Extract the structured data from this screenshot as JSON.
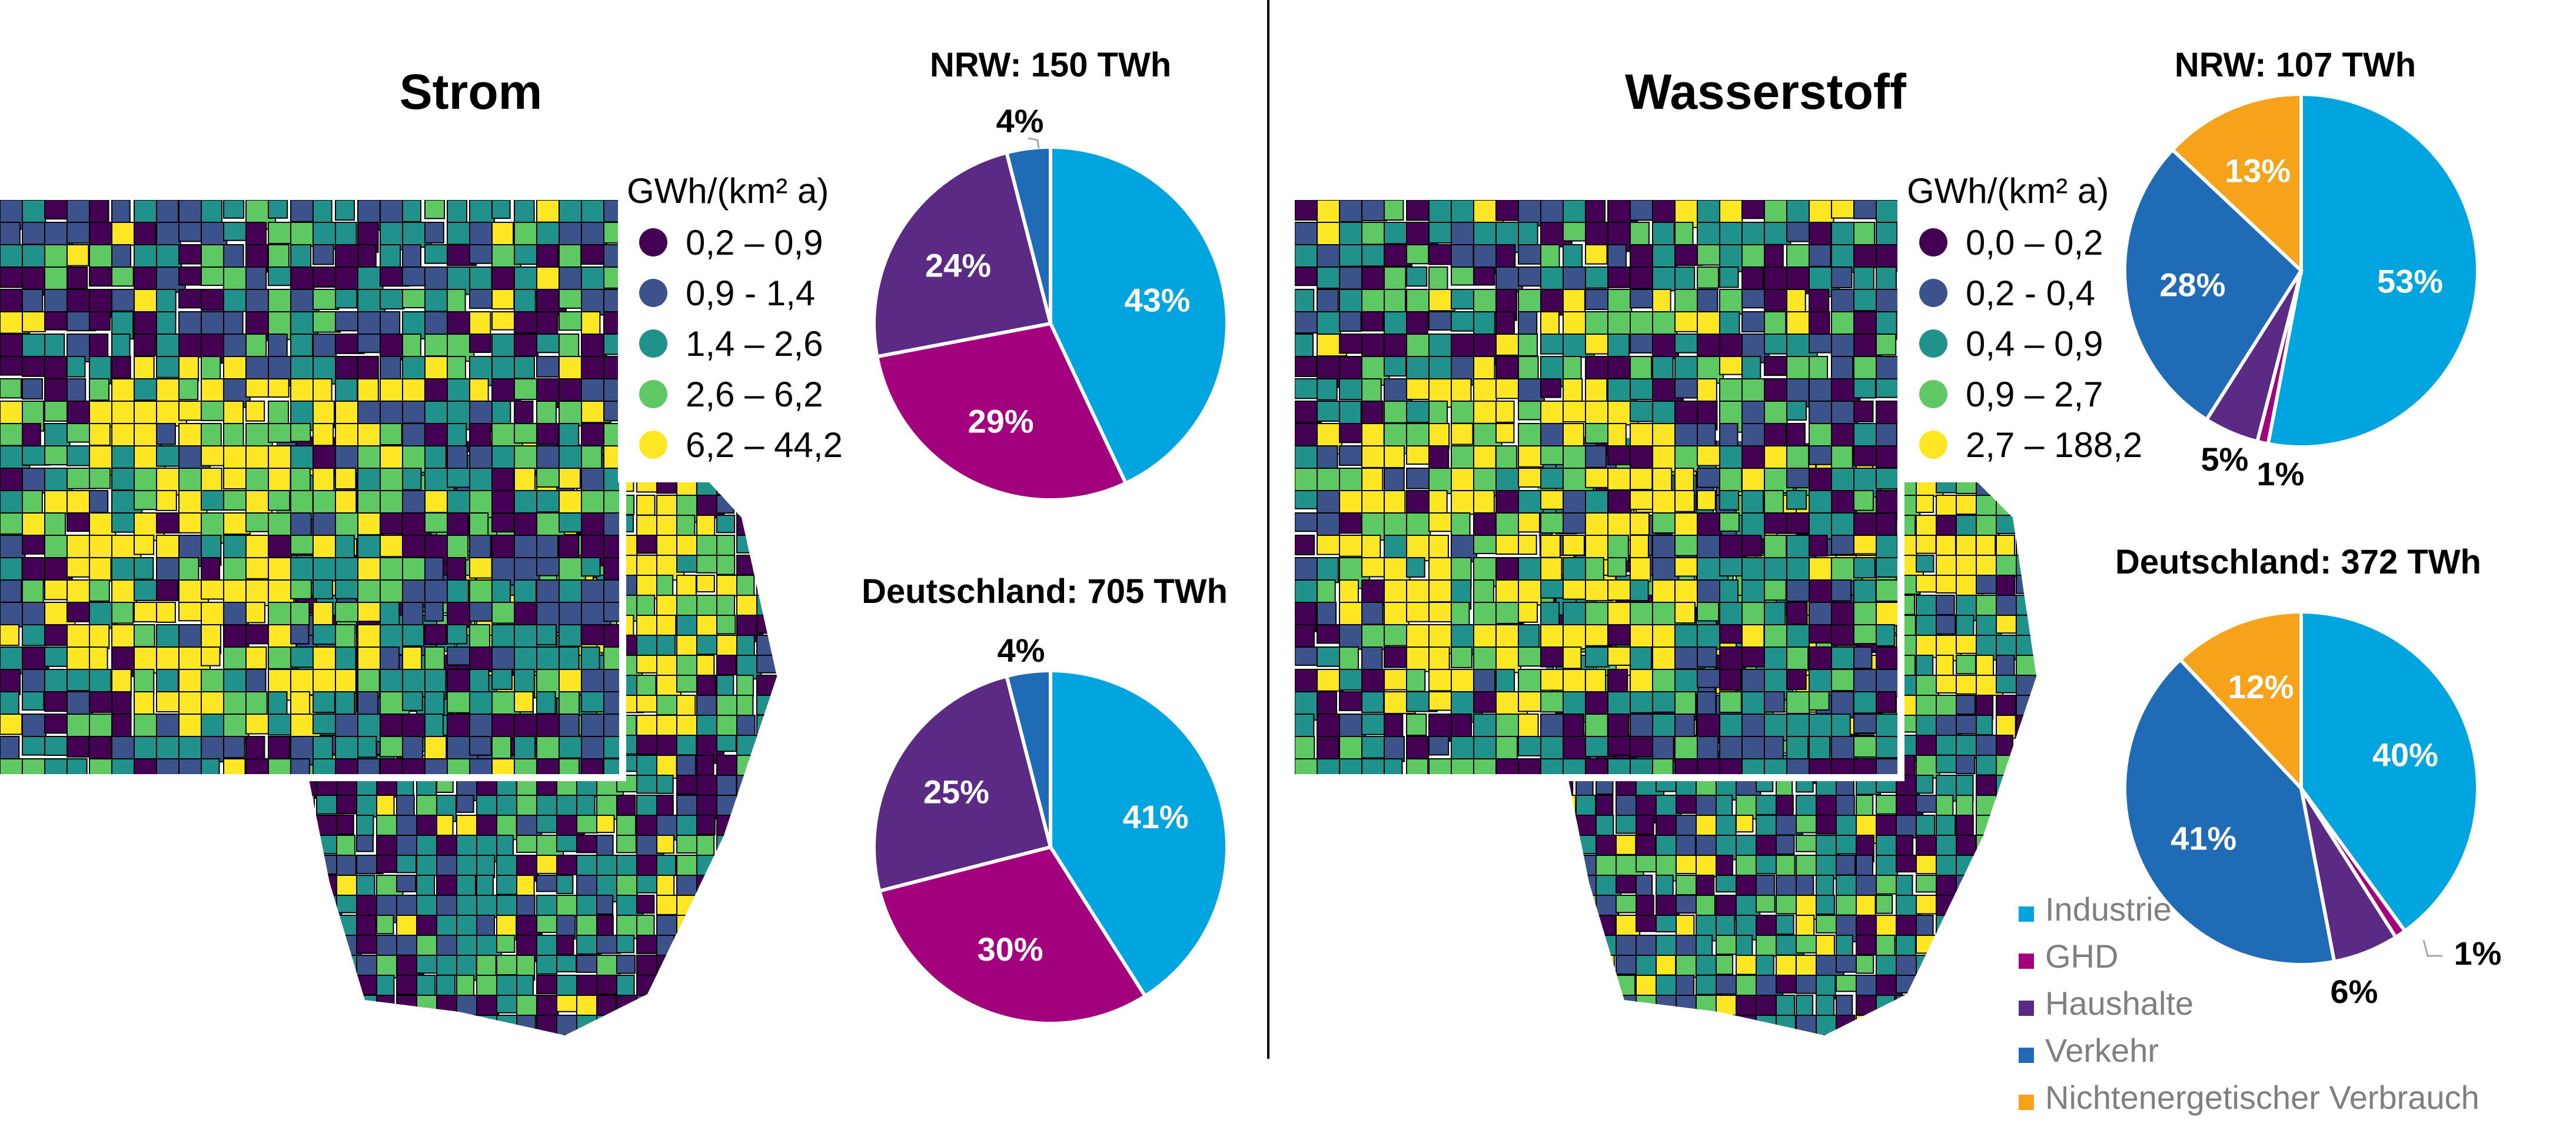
{
  "panels": [
    {
      "title": "Strom",
      "legend_unit": "GWh/(km² a)",
      "legend": [
        {
          "label": "0,2 – 0,9",
          "color": "#440154"
        },
        {
          "label": "0,9 - 1,4",
          "color": "#3b528b"
        },
        {
          "label": "1,4 – 2,6",
          "color": "#21918c"
        },
        {
          "label": "2,6 – 6,2",
          "color": "#5ec962"
        },
        {
          "label": "6,2 – 44,2",
          "color": "#fde725"
        }
      ]
    },
    {
      "title": "Wasserstoff",
      "legend_unit": "GWh/(km² a)",
      "legend": [
        {
          "label": "0,0 – 0,2",
          "color": "#440154"
        },
        {
          "label": "0,2 - 0,4",
          "color": "#3b528b"
        },
        {
          "label": "0,4 – 0,9",
          "color": "#21918c"
        },
        {
          "label": "0,9 – 2,7",
          "color": "#5ec962"
        },
        {
          "label": "2,7 – 188,2",
          "color": "#fde725"
        }
      ]
    }
  ],
  "category_legend": [
    {
      "label": "Industrie",
      "color": "#00a5e0"
    },
    {
      "label": "GHD",
      "color": "#a3007d"
    },
    {
      "label": "Haushalte",
      "color": "#5a2a84"
    },
    {
      "label": "Verkehr",
      "color": "#1f6bb5"
    },
    {
      "label": "Nichtenergetischer Verbrauch",
      "color": "#f7a21b"
    }
  ],
  "chart_data": [
    {
      "type": "pie",
      "title": "NRW: 150 TWh",
      "categories": [
        "Industrie",
        "GHD",
        "Haushalte",
        "Verkehr"
      ],
      "values": [
        43,
        29,
        24,
        4
      ],
      "labels": [
        "43%",
        "29%",
        "24%",
        "4%"
      ]
    },
    {
      "type": "pie",
      "title": "Deutschland: 705 TWh",
      "categories": [
        "Industrie",
        "GHD",
        "Haushalte",
        "Verkehr"
      ],
      "values": [
        41,
        30,
        25,
        4
      ],
      "labels": [
        "41%",
        "30%",
        "25%",
        "4%"
      ]
    },
    {
      "type": "pie",
      "title": "NRW: 107 TWh",
      "categories": [
        "Industrie",
        "GHD",
        "Haushalte",
        "Verkehr",
        "Nichtenergetischer Verbrauch"
      ],
      "values": [
        53,
        1,
        5,
        28,
        13
      ],
      "labels": [
        "53%",
        "1%",
        "5%",
        "28%",
        "13%"
      ]
    },
    {
      "type": "pie",
      "title": "Deutschland: 372 TWh",
      "categories": [
        "Industrie",
        "GHD",
        "Haushalte",
        "Verkehr",
        "Nichtenergetischer Verbrauch"
      ],
      "values": [
        40,
        1,
        6,
        41,
        12
      ],
      "labels": [
        "40%",
        "1%",
        "6%",
        "41%",
        "12%"
      ]
    }
  ]
}
